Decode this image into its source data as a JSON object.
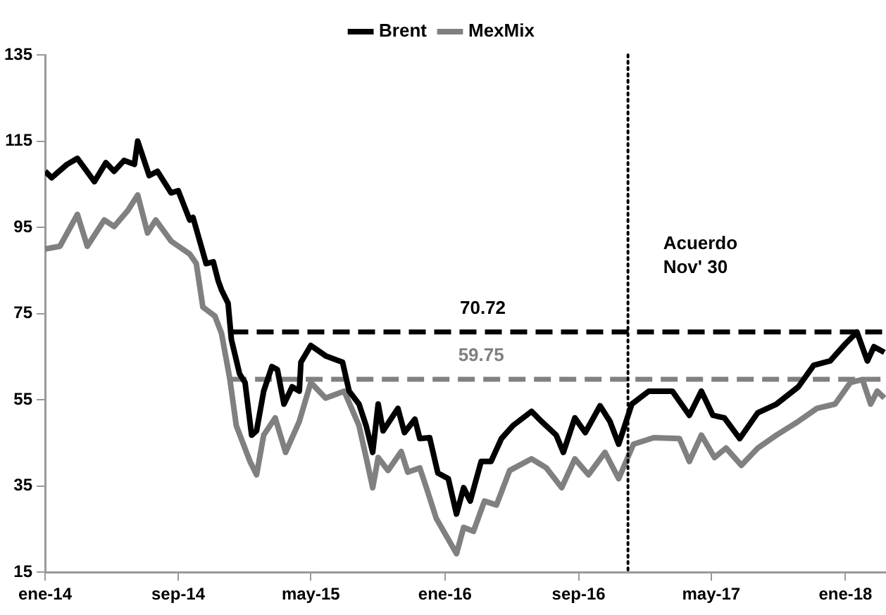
{
  "chart_data": {
    "type": "line",
    "xlim": [
      "2014-01-01",
      "2018-03-16"
    ],
    "xticks": [
      {
        "value": "2014-01",
        "label": "ene-14"
      },
      {
        "value": "2014-09",
        "label": "sep-14"
      },
      {
        "value": "2015-05",
        "label": "may-15"
      },
      {
        "value": "2016-01",
        "label": "ene-16"
      },
      {
        "value": "2016-09",
        "label": "sep-16"
      },
      {
        "value": "2017-05",
        "label": "may-17"
      },
      {
        "value": "2018-01",
        "label": "ene-18"
      }
    ],
    "ylim": [
      15,
      135
    ],
    "yticks": [
      15,
      35,
      55,
      75,
      95,
      115,
      135
    ],
    "legend": "top",
    "line_style": "solid",
    "marker": "none",
    "series": [
      {
        "name": "Brent",
        "color": "#000000",
        "x": [
          "2014-01-01",
          "2014-01-13",
          "2014-02-10",
          "2014-03-01",
          "2014-04-01",
          "2014-04-22",
          "2014-05-07",
          "2014-05-25",
          "2014-06-13",
          "2014-06-19",
          "2014-07-10",
          "2014-07-25",
          "2014-08-19",
          "2014-09-01",
          "2014-09-22",
          "2014-09-28",
          "2014-10-22",
          "2014-11-04",
          "2014-11-13",
          "2014-11-19",
          "2014-12-01",
          "2014-12-07",
          "2014-12-22",
          "2015-01-01",
          "2015-01-13",
          "2015-01-22",
          "2015-02-04",
          "2015-02-19",
          "2015-03-01",
          "2015-03-13",
          "2015-03-28",
          "2015-04-10",
          "2015-04-13",
          "2015-05-01",
          "2015-05-28",
          "2015-06-28",
          "2015-07-10",
          "2015-07-28",
          "2015-08-10",
          "2015-08-22",
          "2015-09-01",
          "2015-09-10",
          "2015-10-07",
          "2015-10-19",
          "2015-11-07",
          "2015-11-16",
          "2015-12-04",
          "2015-12-19",
          "2016-01-07",
          "2016-01-22",
          "2016-02-04",
          "2016-02-16",
          "2016-03-07",
          "2016-03-25",
          "2016-04-13",
          "2016-05-04",
          "2016-06-07",
          "2016-06-25",
          "2016-07-22",
          "2016-08-04",
          "2016-08-25",
          "2016-09-13",
          "2016-10-10",
          "2016-10-28",
          "2016-11-13",
          "2016-12-07",
          "2017-01-07",
          "2017-02-19",
          "2017-03-22",
          "2017-04-13",
          "2017-05-04",
          "2017-05-25",
          "2017-06-22",
          "2017-07-25",
          "2017-08-28",
          "2017-10-07",
          "2017-11-04",
          "2017-12-04",
          "2018-01-01",
          "2018-01-22",
          "2018-02-10",
          "2018-02-22",
          "2018-03-13"
        ],
        "values": [
          108,
          106.5,
          109.6,
          111,
          105.6,
          110,
          108,
          110.5,
          109.6,
          115,
          107,
          108,
          103,
          103.5,
          96.7,
          97.3,
          86.6,
          87,
          82.6,
          80.5,
          77.4,
          69,
          61,
          59,
          46.8,
          47.8,
          57,
          62.7,
          62,
          54,
          58,
          57,
          63.7,
          67.6,
          65.2,
          63.7,
          57,
          54,
          49,
          42.8,
          54,
          47.8,
          53,
          47.4,
          50.5,
          46,
          46.2,
          38,
          36.7,
          28.5,
          34.6,
          31.5,
          40.7,
          40.7,
          46,
          49,
          52.3,
          50,
          46.8,
          42.8,
          50.8,
          47.4,
          53.6,
          50,
          44.7,
          54,
          57,
          57,
          51.4,
          57,
          51.4,
          50.8,
          46,
          52,
          54,
          58,
          63,
          64,
          68,
          70.7,
          64,
          67.3,
          66
        ]
      },
      {
        "name": "MexMix",
        "color": "#808080",
        "x": [
          "2014-01-01",
          "2014-01-28",
          "2014-03-01",
          "2014-03-19",
          "2014-04-19",
          "2014-05-07",
          "2014-06-01",
          "2014-06-19",
          "2014-07-07",
          "2014-07-22",
          "2014-08-19",
          "2014-09-22",
          "2014-10-04",
          "2014-10-16",
          "2014-11-07",
          "2014-11-19",
          "2014-12-04",
          "2014-12-16",
          "2015-01-10",
          "2015-01-22",
          "2015-02-04",
          "2015-02-25",
          "2015-03-16",
          "2015-04-10",
          "2015-05-01",
          "2015-05-28",
          "2015-07-01",
          "2015-07-28",
          "2015-08-10",
          "2015-08-22",
          "2015-09-01",
          "2015-09-19",
          "2015-10-13",
          "2015-10-25",
          "2015-11-16",
          "2015-11-28",
          "2015-12-16",
          "2016-01-22",
          "2016-02-04",
          "2016-02-22",
          "2016-03-13",
          "2016-04-04",
          "2016-04-28",
          "2016-06-07",
          "2016-07-04",
          "2016-08-01",
          "2016-08-25",
          "2016-09-19",
          "2016-10-19",
          "2016-11-13",
          "2016-12-10",
          "2017-01-16",
          "2017-03-04",
          "2017-03-22",
          "2017-04-13",
          "2017-05-07",
          "2017-05-28",
          "2017-06-25",
          "2017-07-25",
          "2017-08-28",
          "2017-10-07",
          "2017-11-10",
          "2017-12-13",
          "2018-01-10",
          "2018-02-01",
          "2018-02-16",
          "2018-02-28",
          "2018-03-13"
        ],
        "values": [
          90,
          90.6,
          98,
          90.6,
          96.7,
          95.2,
          98.9,
          102.5,
          93.7,
          96.7,
          91.8,
          88.8,
          86.6,
          76.5,
          74.4,
          70.4,
          60,
          49,
          40.7,
          37.6,
          46.8,
          50.8,
          42.8,
          50,
          59,
          55.4,
          57,
          49,
          41.6,
          34.6,
          41.6,
          38.6,
          43,
          38.2,
          39.2,
          34.6,
          27.5,
          19.3,
          25.4,
          24.5,
          31.5,
          30.6,
          38.6,
          41.3,
          39.2,
          34.6,
          41.3,
          37.6,
          42.8,
          36.7,
          44.7,
          46.2,
          46,
          40.7,
          46.8,
          41.6,
          43.8,
          39.8,
          43.8,
          46.8,
          50,
          53,
          54,
          59,
          59.7,
          54,
          57,
          55.4
        ]
      },
      {
        "color": "#000000",
        "line_style": "dashed",
        "x": [
          "2014-12-07",
          "2016-03-10",
          "2018-03-16"
        ],
        "values": [
          70.72,
          70.72,
          70.72
        ],
        "value_labels": [
          null,
          "70.72",
          null
        ]
      },
      {
        "color": "#808080",
        "line_style": "dashed",
        "x": [
          "2014-12-04",
          "2016-03-07",
          "2018-03-16"
        ],
        "values": [
          59.75,
          59.75,
          59.75
        ],
        "value_labels": [
          null,
          "59.75",
          null
        ]
      }
    ],
    "ref_lines": [
      {
        "axis": "x",
        "value": "2016-11-30",
        "label": "Acuerdo Nov' 30",
        "color": "#000000",
        "line_style": "dotted"
      }
    ]
  }
}
